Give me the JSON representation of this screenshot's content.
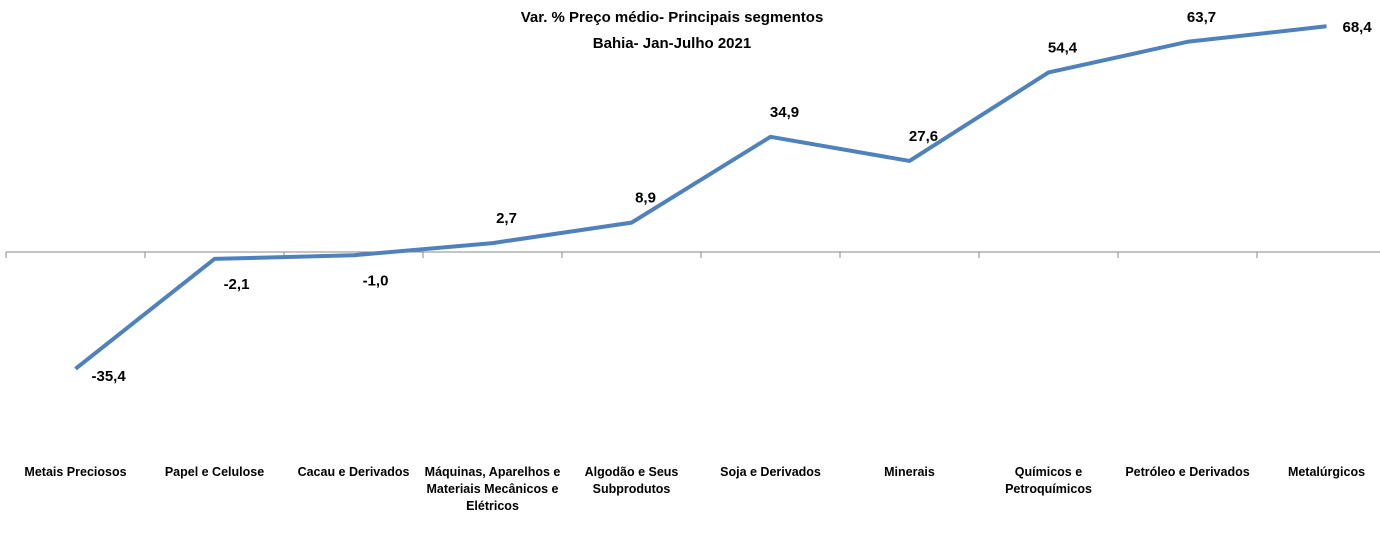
{
  "chart_data": {
    "type": "line",
    "title": [
      "Var. %  Preço médio- Principais segmentos",
      "Bahia-  Jan-Julho 2021"
    ],
    "categories": [
      "Metais Preciosos",
      "Papel e Celulose",
      "Cacau e Derivados",
      "Máquinas, Aparelhos e Materiais Mecânicos e Elétricos",
      "Algodão e Seus Subprodutos",
      "Soja e Derivados",
      "Minerais",
      "Químicos e Petroquímicos",
      "Petróleo e Derivados",
      "Metalúrgicos"
    ],
    "series": [
      {
        "color": "#4f81bd",
        "values": [
          -35.4,
          -2.1,
          -1.0,
          2.7,
          8.9,
          34.9,
          27.6,
          54.4,
          63.7,
          68.4
        ],
        "value_labels": [
          "-35,4",
          "-2,1",
          "-1,0",
          "2,7",
          "8,9",
          "34,9",
          "27,6",
          "54,4",
          "63,7",
          "68,4"
        ]
      }
    ],
    "ylim": [
      -40,
      70
    ]
  }
}
